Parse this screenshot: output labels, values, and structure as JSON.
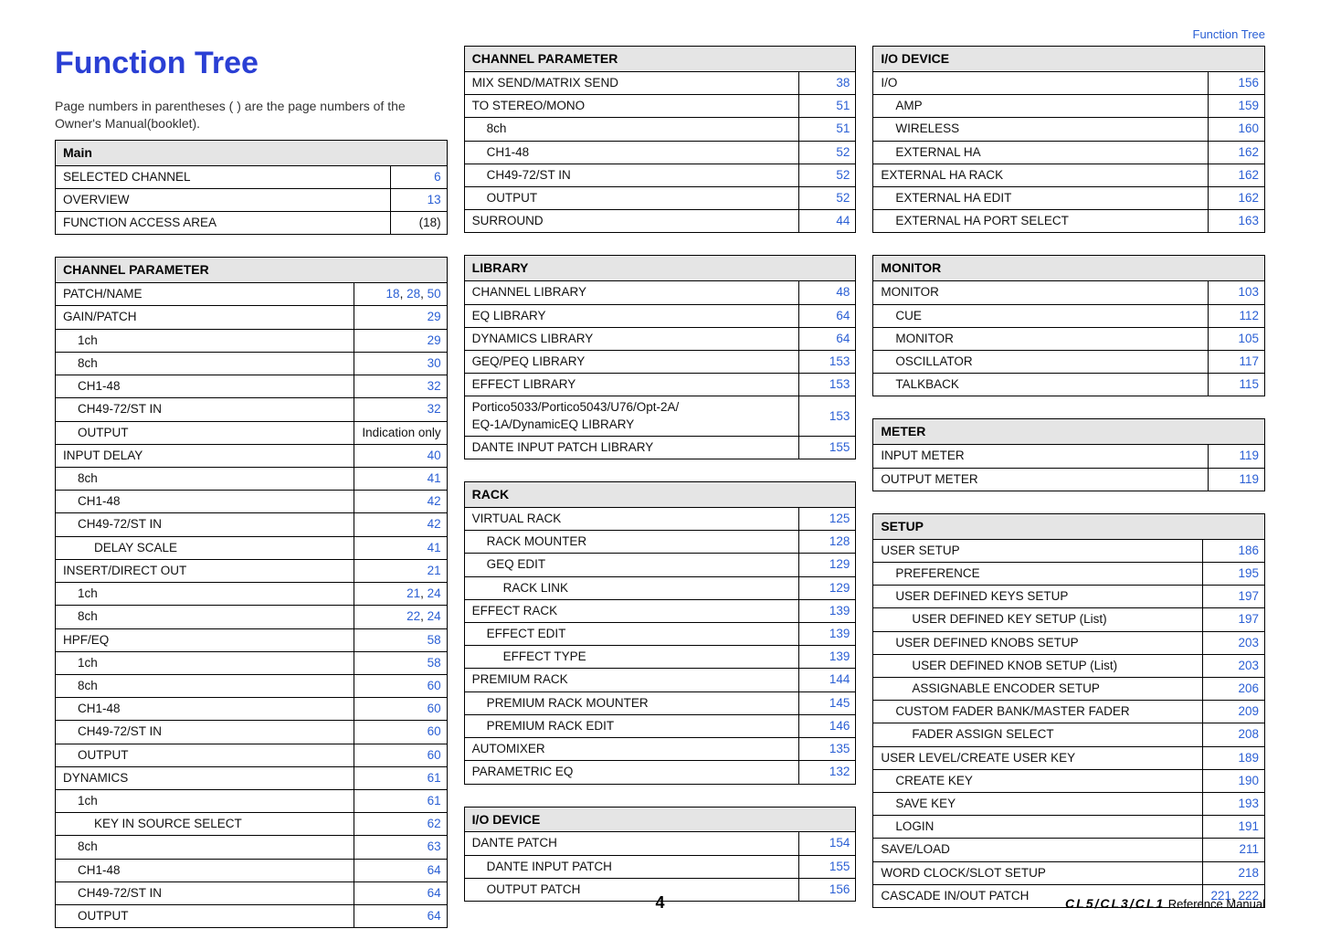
{
  "header_link": "Function Tree",
  "title": "Function Tree",
  "intro": "Page numbers in parentheses ( ) are the page numbers of the Owner's Manual(booklet).",
  "page_number": "4",
  "footer_product": "CL5/CL3/CL1",
  "footer_text": " Reference Manual",
  "col1_top": {
    "header": "Main",
    "rows": [
      {
        "label": "SELECTED CHANNEL",
        "pages": [
          {
            "t": "6"
          }
        ],
        "indent": 0
      },
      {
        "label": "OVERVIEW",
        "pages": [
          {
            "t": "13"
          }
        ],
        "indent": 0
      },
      {
        "label": "FUNCTION ACCESS AREA",
        "pages": [
          {
            "t": "(18)",
            "black": true
          }
        ],
        "indent": 0
      }
    ]
  },
  "col1_bottom": {
    "header": "CHANNEL PARAMETER",
    "rows": [
      {
        "label": "PATCH/NAME",
        "pages": [
          {
            "t": "18"
          },
          {
            "t": ", ",
            "black": true
          },
          {
            "t": "28"
          },
          {
            "t": ", ",
            "black": true
          },
          {
            "t": "50"
          }
        ],
        "indent": 0
      },
      {
        "label": "GAIN/PATCH",
        "pages": [
          {
            "t": "29"
          }
        ],
        "indent": 0
      },
      {
        "label": "1ch",
        "pages": [
          {
            "t": "29"
          }
        ],
        "indent": 1
      },
      {
        "label": "8ch",
        "pages": [
          {
            "t": "30"
          }
        ],
        "indent": 1
      },
      {
        "label": "CH1-48",
        "pages": [
          {
            "t": "32"
          }
        ],
        "indent": 1
      },
      {
        "label": "CH49-72/ST IN",
        "pages": [
          {
            "t": "32"
          }
        ],
        "indent": 1
      },
      {
        "label": "OUTPUT",
        "pages": [
          {
            "t": "Indication only",
            "black": true
          }
        ],
        "indent": 1,
        "wide": true
      },
      {
        "label": "INPUT DELAY",
        "pages": [
          {
            "t": "40"
          }
        ],
        "indent": 0
      },
      {
        "label": "8ch",
        "pages": [
          {
            "t": "41"
          }
        ],
        "indent": 1
      },
      {
        "label": "CH1-48",
        "pages": [
          {
            "t": "42"
          }
        ],
        "indent": 1
      },
      {
        "label": "CH49-72/ST IN",
        "pages": [
          {
            "t": "42"
          }
        ],
        "indent": 1
      },
      {
        "label": "DELAY SCALE",
        "pages": [
          {
            "t": "41"
          }
        ],
        "indent": 2
      },
      {
        "label": "INSERT/DIRECT OUT",
        "pages": [
          {
            "t": "21"
          }
        ],
        "indent": 0
      },
      {
        "label": "1ch",
        "pages": [
          {
            "t": "21"
          },
          {
            "t": ", ",
            "black": true
          },
          {
            "t": "24"
          }
        ],
        "indent": 1
      },
      {
        "label": "8ch",
        "pages": [
          {
            "t": "22"
          },
          {
            "t": ", ",
            "black": true
          },
          {
            "t": "24"
          }
        ],
        "indent": 1
      },
      {
        "label": "HPF/EQ",
        "pages": [
          {
            "t": "58"
          }
        ],
        "indent": 0
      },
      {
        "label": "1ch",
        "pages": [
          {
            "t": "58"
          }
        ],
        "indent": 1
      },
      {
        "label": "8ch",
        "pages": [
          {
            "t": "60"
          }
        ],
        "indent": 1
      },
      {
        "label": "CH1-48",
        "pages": [
          {
            "t": "60"
          }
        ],
        "indent": 1
      },
      {
        "label": "CH49-72/ST IN",
        "pages": [
          {
            "t": "60"
          }
        ],
        "indent": 1
      },
      {
        "label": "OUTPUT",
        "pages": [
          {
            "t": "60"
          }
        ],
        "indent": 1
      },
      {
        "label": "DYNAMICS",
        "pages": [
          {
            "t": "61"
          }
        ],
        "indent": 0
      },
      {
        "label": "1ch",
        "pages": [
          {
            "t": "61"
          }
        ],
        "indent": 1
      },
      {
        "label": "KEY IN SOURCE SELECT",
        "pages": [
          {
            "t": "62"
          }
        ],
        "indent": 2
      },
      {
        "label": "8ch",
        "pages": [
          {
            "t": "63"
          }
        ],
        "indent": 1
      },
      {
        "label": "CH1-48",
        "pages": [
          {
            "t": "64"
          }
        ],
        "indent": 1
      },
      {
        "label": "CH49-72/ST IN",
        "pages": [
          {
            "t": "64"
          }
        ],
        "indent": 1
      },
      {
        "label": "OUTPUT",
        "pages": [
          {
            "t": "64"
          }
        ],
        "indent": 1
      }
    ]
  },
  "col2_a": {
    "header": "CHANNEL PARAMETER",
    "rows": [
      {
        "label": "MIX SEND/MATRIX SEND",
        "pages": [
          {
            "t": "38"
          }
        ],
        "indent": 0
      },
      {
        "label": "TO STEREO/MONO",
        "pages": [
          {
            "t": "51"
          }
        ],
        "indent": 0
      },
      {
        "label": "8ch",
        "pages": [
          {
            "t": "51"
          }
        ],
        "indent": 1
      },
      {
        "label": "CH1-48",
        "pages": [
          {
            "t": "52"
          }
        ],
        "indent": 1
      },
      {
        "label": "CH49-72/ST IN",
        "pages": [
          {
            "t": "52"
          }
        ],
        "indent": 1
      },
      {
        "label": "OUTPUT",
        "pages": [
          {
            "t": "52"
          }
        ],
        "indent": 1
      },
      {
        "label": "SURROUND",
        "pages": [
          {
            "t": "44"
          }
        ],
        "indent": 0
      }
    ]
  },
  "col2_b": {
    "header": "LIBRARY",
    "rows": [
      {
        "label": "CHANNEL LIBRARY",
        "pages": [
          {
            "t": "48"
          }
        ],
        "indent": 0
      },
      {
        "label": "EQ LIBRARY",
        "pages": [
          {
            "t": "64"
          }
        ],
        "indent": 0
      },
      {
        "label": "DYNAMICS LIBRARY",
        "pages": [
          {
            "t": "64"
          }
        ],
        "indent": 0
      },
      {
        "label": "GEQ/PEQ LIBRARY",
        "pages": [
          {
            "t": "153"
          }
        ],
        "indent": 0
      },
      {
        "label": "EFFECT LIBRARY",
        "pages": [
          {
            "t": "153"
          }
        ],
        "indent": 0
      },
      {
        "label": "Portico5033/Portico5043/U76/Opt-2A/\nEQ-1A/DynamicEQ LIBRARY",
        "pages": [
          {
            "t": "153"
          }
        ],
        "indent": 0
      },
      {
        "label": "DANTE INPUT PATCH LIBRARY",
        "pages": [
          {
            "t": "155"
          }
        ],
        "indent": 0
      }
    ]
  },
  "col2_c": {
    "header": "RACK",
    "rows": [
      {
        "label": "VIRTUAL RACK",
        "pages": [
          {
            "t": "125"
          }
        ],
        "indent": 0
      },
      {
        "label": "RACK MOUNTER",
        "pages": [
          {
            "t": "128"
          }
        ],
        "indent": 1
      },
      {
        "label": "GEQ EDIT",
        "pages": [
          {
            "t": "129"
          }
        ],
        "indent": 1
      },
      {
        "label": "RACK LINK",
        "pages": [
          {
            "t": "129"
          }
        ],
        "indent": 2
      },
      {
        "label": "EFFECT RACK",
        "pages": [
          {
            "t": "139"
          }
        ],
        "indent": 0
      },
      {
        "label": "EFFECT EDIT",
        "pages": [
          {
            "t": "139"
          }
        ],
        "indent": 1
      },
      {
        "label": "EFFECT TYPE",
        "pages": [
          {
            "t": "139"
          }
        ],
        "indent": 2
      },
      {
        "label": "PREMIUM RACK",
        "pages": [
          {
            "t": "144"
          }
        ],
        "indent": 0
      },
      {
        "label": "PREMIUM RACK MOUNTER",
        "pages": [
          {
            "t": "145"
          }
        ],
        "indent": 1
      },
      {
        "label": "PREMIUM RACK EDIT",
        "pages": [
          {
            "t": "146"
          }
        ],
        "indent": 1
      },
      {
        "label": "AUTOMIXER",
        "pages": [
          {
            "t": "135"
          }
        ],
        "indent": 0
      },
      {
        "label": "PARAMETRIC EQ",
        "pages": [
          {
            "t": "132"
          }
        ],
        "indent": 0
      }
    ]
  },
  "col2_d": {
    "header": "I/O DEVICE",
    "rows": [
      {
        "label": "DANTE PATCH",
        "pages": [
          {
            "t": "154"
          }
        ],
        "indent": 0
      },
      {
        "label": "DANTE INPUT PATCH",
        "pages": [
          {
            "t": "155"
          }
        ],
        "indent": 1
      },
      {
        "label": "OUTPUT PATCH",
        "pages": [
          {
            "t": "156"
          }
        ],
        "indent": 1
      }
    ]
  },
  "col3_a": {
    "header": "I/O DEVICE",
    "rows": [
      {
        "label": "I/O",
        "pages": [
          {
            "t": "156"
          }
        ],
        "indent": 0
      },
      {
        "label": "AMP",
        "pages": [
          {
            "t": "159"
          }
        ],
        "indent": 1
      },
      {
        "label": "WIRELESS",
        "pages": [
          {
            "t": "160"
          }
        ],
        "indent": 1
      },
      {
        "label": "EXTERNAL HA",
        "pages": [
          {
            "t": "162"
          }
        ],
        "indent": 1
      },
      {
        "label": "EXTERNAL HA RACK",
        "pages": [
          {
            "t": "162"
          }
        ],
        "indent": 0
      },
      {
        "label": "EXTERNAL HA EDIT",
        "pages": [
          {
            "t": "162"
          }
        ],
        "indent": 1
      },
      {
        "label": "EXTERNAL HA PORT SELECT",
        "pages": [
          {
            "t": "163"
          }
        ],
        "indent": 1
      }
    ]
  },
  "col3_b": {
    "header": "MONITOR",
    "rows": [
      {
        "label": "MONITOR",
        "pages": [
          {
            "t": "103"
          }
        ],
        "indent": 0
      },
      {
        "label": "CUE",
        "pages": [
          {
            "t": "112"
          }
        ],
        "indent": 1
      },
      {
        "label": "MONITOR",
        "pages": [
          {
            "t": "105"
          }
        ],
        "indent": 1
      },
      {
        "label": "OSCILLATOR",
        "pages": [
          {
            "t": "117"
          }
        ],
        "indent": 1
      },
      {
        "label": "TALKBACK",
        "pages": [
          {
            "t": "115"
          }
        ],
        "indent": 1
      }
    ]
  },
  "col3_c": {
    "header": "METER",
    "rows": [
      {
        "label": "INPUT METER",
        "pages": [
          {
            "t": "119"
          }
        ],
        "indent": 0
      },
      {
        "label": "OUTPUT METER",
        "pages": [
          {
            "t": "119"
          }
        ],
        "indent": 0
      }
    ]
  },
  "col3_d": {
    "header": "SETUP",
    "rows": [
      {
        "label": "USER SETUP",
        "pages": [
          {
            "t": "186"
          }
        ],
        "indent": 0
      },
      {
        "label": "PREFERENCE",
        "pages": [
          {
            "t": "195"
          }
        ],
        "indent": 1
      },
      {
        "label": "USER DEFINED KEYS SETUP",
        "pages": [
          {
            "t": "197"
          }
        ],
        "indent": 1
      },
      {
        "label": "USER DEFINED KEY SETUP (List)",
        "pages": [
          {
            "t": "197"
          }
        ],
        "indent": 2
      },
      {
        "label": "USER DEFINED KNOBS SETUP",
        "pages": [
          {
            "t": "203"
          }
        ],
        "indent": 1
      },
      {
        "label": "USER DEFINED KNOB SETUP (List)",
        "pages": [
          {
            "t": "203"
          }
        ],
        "indent": 2
      },
      {
        "label": "ASSIGNABLE ENCODER SETUP",
        "pages": [
          {
            "t": "206"
          }
        ],
        "indent": 2
      },
      {
        "label": "CUSTOM FADER BANK/MASTER FADER",
        "pages": [
          {
            "t": "209"
          }
        ],
        "indent": 1
      },
      {
        "label": "FADER ASSIGN SELECT",
        "pages": [
          {
            "t": "208"
          }
        ],
        "indent": 2
      },
      {
        "label": "USER LEVEL/CREATE USER KEY",
        "pages": [
          {
            "t": "189"
          }
        ],
        "indent": 0
      },
      {
        "label": "CREATE KEY",
        "pages": [
          {
            "t": "190"
          }
        ],
        "indent": 1
      },
      {
        "label": "SAVE KEY",
        "pages": [
          {
            "t": "193"
          }
        ],
        "indent": 1
      },
      {
        "label": "LOGIN",
        "pages": [
          {
            "t": "191"
          }
        ],
        "indent": 1
      },
      {
        "label": "SAVE/LOAD",
        "pages": [
          {
            "t": "211"
          }
        ],
        "indent": 0
      },
      {
        "label": "WORD CLOCK/SLOT SETUP",
        "pages": [
          {
            "t": "218"
          }
        ],
        "indent": 0
      },
      {
        "label": "CASCADE IN/OUT PATCH",
        "pages": [
          {
            "t": "221"
          },
          {
            "t": ", ",
            "black": true
          },
          {
            "t": "222"
          }
        ],
        "indent": 0
      }
    ]
  }
}
